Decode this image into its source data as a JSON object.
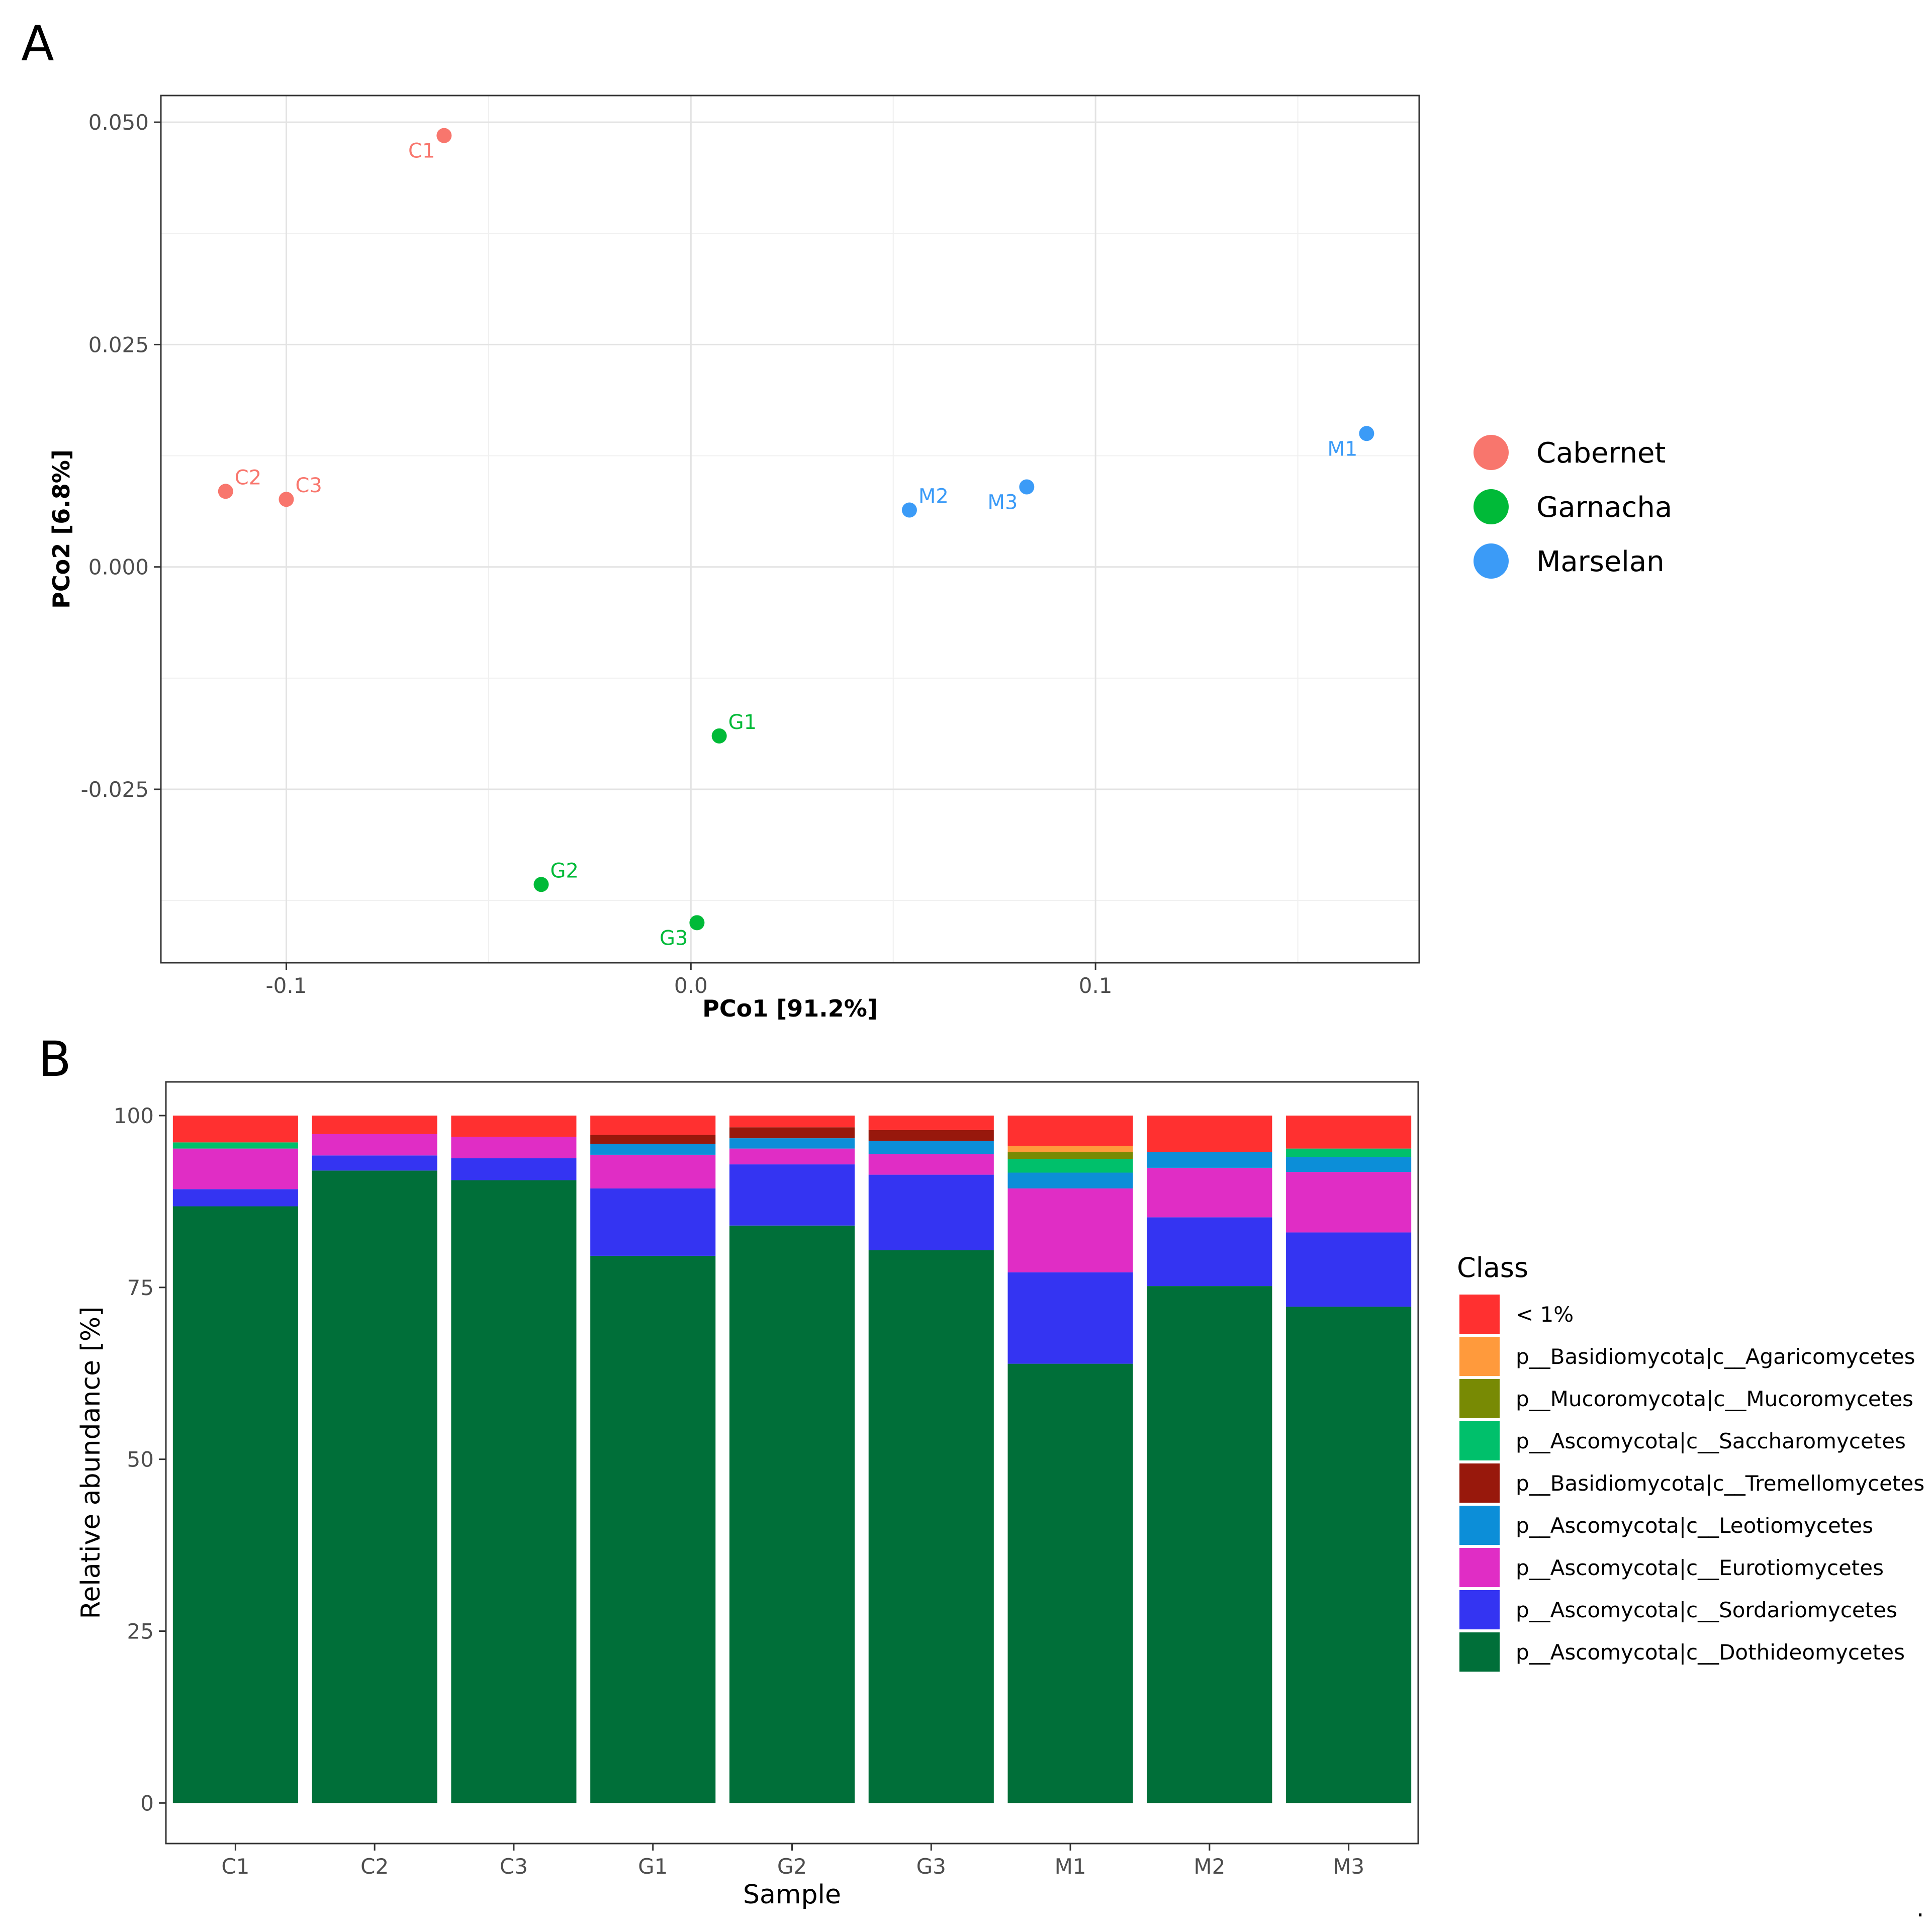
{
  "panel_a_letter": "A",
  "panel_b_letter": "B",
  "trailing_mark": ".",
  "chart_data": [
    {
      "type": "scatter",
      "panel": "A",
      "title": "",
      "xlabel": "PCo1 [91.2%]",
      "ylabel": "PCo2 [6.8%]",
      "xlim": [
        -0.131,
        0.18
      ],
      "ylim": [
        -0.0445,
        0.053
      ],
      "xticks": [
        -0.1,
        0.0,
        0.1
      ],
      "xtick_labels": [
        "-0.1",
        "0.0",
        "0.1"
      ],
      "yticks": [
        0.05,
        0.025,
        0.0,
        -0.025
      ],
      "ytick_labels": [
        "0.050",
        "0.025",
        "0.000",
        "-0.025"
      ],
      "grid": true,
      "legend_position": "right",
      "groups": [
        {
          "name": "Cabernet",
          "color": "#F8766D"
        },
        {
          "name": "Garnacha",
          "color": "#00BA38"
        },
        {
          "name": "Marselan",
          "color": "#3B9BF7"
        }
      ],
      "points": [
        {
          "label": "C1",
          "group": "Cabernet",
          "x": -0.061,
          "y": 0.0485,
          "label_pos": "below-left"
        },
        {
          "label": "C2",
          "group": "Cabernet",
          "x": -0.115,
          "y": 0.0085,
          "label_pos": "above-right"
        },
        {
          "label": "C3",
          "group": "Cabernet",
          "x": -0.1,
          "y": 0.0076,
          "label_pos": "above-right"
        },
        {
          "label": "G1",
          "group": "Garnacha",
          "x": 0.007,
          "y": -0.019,
          "label_pos": "above-right"
        },
        {
          "label": "G2",
          "group": "Garnacha",
          "x": -0.037,
          "y": -0.0357,
          "label_pos": "above-right"
        },
        {
          "label": "G3",
          "group": "Garnacha",
          "x": 0.0015,
          "y": -0.04,
          "label_pos": "below-left"
        },
        {
          "label": "M1",
          "group": "Marselan",
          "x": 0.167,
          "y": 0.015,
          "label_pos": "below-left"
        },
        {
          "label": "M2",
          "group": "Marselan",
          "x": 0.054,
          "y": 0.0064,
          "label_pos": "above-right"
        },
        {
          "label": "M3",
          "group": "Marselan",
          "x": 0.083,
          "y": 0.009,
          "label_pos": "below-left"
        }
      ]
    },
    {
      "type": "bar",
      "stacked": true,
      "panel": "B",
      "title": "",
      "xlabel": "Sample",
      "ylabel": "Relative abundance [%]",
      "ylim": [
        -5.9,
        104.9
      ],
      "yticks": [
        0,
        25,
        50,
        75,
        100
      ],
      "ytick_labels": [
        "0",
        "25",
        "50",
        "75",
        "100"
      ],
      "categories": [
        "C1",
        "C2",
        "C3",
        "G1",
        "G2",
        "G3",
        "M1",
        "M2",
        "M3"
      ],
      "legend_title": "Class",
      "legend_position": "right",
      "series": [
        {
          "name": "p__Ascomycota|c__Dothideomycetes",
          "color": "#006F39",
          "values": [
            86.8,
            92.0,
            90.6,
            79.6,
            84.0,
            80.4,
            63.9,
            75.2,
            72.2
          ]
        },
        {
          "name": "p__Ascomycota|c__Sordariomycetes",
          "color": "#3434F2",
          "values": [
            2.5,
            2.2,
            3.2,
            9.8,
            8.9,
            11.0,
            13.3,
            10.0,
            10.8
          ]
        },
        {
          "name": "p__Ascomycota|c__Eurotiomycetes",
          "color": "#E02DC5",
          "values": [
            5.9,
            3.1,
            3.1,
            4.9,
            2.3,
            3.0,
            12.2,
            7.2,
            8.8
          ]
        },
        {
          "name": "p__Ascomycota|c__Leotiomycetes",
          "color": "#0C8ED8",
          "values": [
            0.0,
            0.0,
            0.0,
            1.6,
            1.5,
            1.9,
            2.3,
            2.3,
            2.2
          ]
        },
        {
          "name": "p__Basidiomycota|c__Tremellomycetes",
          "color": "#98180C",
          "values": [
            0.0,
            0.0,
            0.0,
            1.3,
            1.6,
            1.6,
            0.0,
            0.0,
            0.0
          ]
        },
        {
          "name": "p__Ascomycota|c__Saccharomycetes",
          "color": "#00C06B",
          "values": [
            0.9,
            0.0,
            0.0,
            0.0,
            0.0,
            0.0,
            2.0,
            0.0,
            1.2
          ]
        },
        {
          "name": "p__Mucoromycota|c__Mucoromycetes",
          "color": "#788A04",
          "values": [
            0.0,
            0.0,
            0.0,
            0.0,
            0.0,
            0.0,
            1.0,
            0.0,
            0.0
          ]
        },
        {
          "name": "p__Basidiomycota|c__Agaricomycetes",
          "color": "#FF9A3C",
          "values": [
            0.0,
            0.0,
            0.0,
            0.0,
            0.0,
            0.0,
            0.9,
            0.0,
            0.0
          ]
        },
        {
          "name": "< 1%",
          "color": "#FF3030",
          "values": [
            3.9,
            2.7,
            3.1,
            2.8,
            1.7,
            2.1,
            4.4,
            5.3,
            4.8
          ]
        }
      ],
      "legend_order": [
        "< 1%",
        "p__Basidiomycota|c__Agaricomycetes",
        "p__Mucoromycota|c__Mucoromycetes",
        "p__Ascomycota|c__Saccharomycetes",
        "p__Basidiomycota|c__Tremellomycetes",
        "p__Ascomycota|c__Leotiomycetes",
        "p__Ascomycota|c__Eurotiomycetes",
        "p__Ascomycota|c__Sordariomycetes",
        "p__Ascomycota|c__Dothideomycetes"
      ]
    }
  ]
}
